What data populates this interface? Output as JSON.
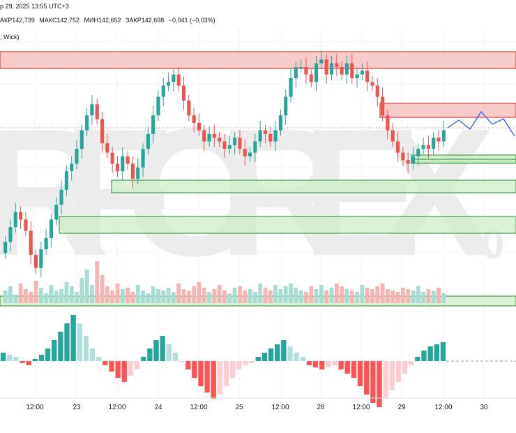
{
  "header": {
    "date_fragment": "р 29, 2025 13:55 UTC+3",
    "ohlc": [
      "АКР142,739",
      "МАКС142,752",
      "МИН142,652",
      "ЗАКР142,698",
      "−0,041 (−0,03%)"
    ],
    "volume_label": ", Wick)"
  },
  "watermark": {
    "text": "RFOREX",
    "suffix": "0"
  },
  "x_axis_labels": [
    "12:00",
    "23",
    "12:00",
    "24",
    "12:00",
    "25",
    "12:00",
    "28",
    "12:00",
    "29",
    "12:00",
    "30"
  ],
  "colors": {
    "up": "#26a69a",
    "down": "#ef5350",
    "resistance_fill": "#f6b9b9",
    "resistance_line": "#e53935",
    "support_fill": "#cdebc9",
    "support_line": "#43a047",
    "projection": "#2962ff",
    "hist_up_strong": "#26a69a",
    "hist_up_weak": "#b2dfdb",
    "hist_down_strong": "#ff5252",
    "hist_down_weak": "#ffcdd2"
  },
  "chart_data": [
    {
      "type": "candlestick",
      "title": "",
      "zones": [
        {
          "kind": "resistance",
          "top": 100,
          "bottom": 76
        },
        {
          "kind": "resistance",
          "top": 81,
          "bottom": 57
        },
        {
          "kind": "support",
          "top": 50,
          "bottom": 42
        },
        {
          "kind": "support",
          "top": 45,
          "bottom": 43
        },
        {
          "kind": "support",
          "top": 34,
          "bottom": 23
        },
        {
          "kind": "support",
          "top": 18,
          "bottom": 3
        },
        {
          "kind": "support",
          "top": 20,
          "bottom": 14
        }
      ],
      "projection_y": [
        60,
        66,
        60,
        68,
        60,
        66,
        55
      ],
      "candles_close": [
        2,
        10,
        18,
        14,
        8,
        -5,
        -12,
        -2,
        4,
        14,
        22,
        30,
        40,
        44,
        52,
        62,
        70,
        76,
        68,
        55,
        50,
        44,
        40,
        48,
        44,
        36,
        42,
        52,
        60,
        70,
        80,
        86,
        88,
        92,
        86,
        78,
        70,
        66,
        62,
        56,
        60,
        58,
        56,
        52,
        54,
        58,
        52,
        48,
        50,
        56,
        62,
        60,
        56,
        62,
        70,
        80,
        90,
        96,
        96,
        92,
        88,
        98,
        100,
        92,
        98,
        96,
        92,
        98,
        90,
        92,
        94,
        88,
        86,
        80,
        70,
        62,
        56,
        50,
        46,
        44,
        48,
        52,
        54,
        52,
        58,
        56,
        62
      ],
      "volume": [
        9,
        12,
        6,
        14,
        10,
        8,
        16,
        11,
        7,
        13,
        9,
        10,
        15,
        12,
        8,
        18,
        24,
        13,
        30,
        20,
        12,
        9,
        14,
        10,
        11,
        8,
        13,
        9,
        7,
        12,
        10,
        9,
        11,
        8,
        14,
        10,
        9,
        12,
        15,
        11,
        8,
        10,
        13,
        9,
        7,
        11,
        12,
        9,
        10,
        8,
        14,
        11,
        9,
        13,
        10,
        12,
        14,
        11,
        9,
        8,
        12,
        10,
        13,
        9,
        11,
        14,
        12,
        10,
        9,
        8,
        13,
        11,
        10,
        12,
        14,
        10,
        9,
        8,
        11,
        10,
        9,
        12,
        8,
        10,
        9,
        11,
        7
      ],
      "histogram": [
        4,
        3,
        2,
        -1,
        -2,
        1,
        3,
        6,
        10,
        14,
        18,
        22,
        18,
        12,
        6,
        2,
        -2,
        -5,
        -8,
        -10,
        -7,
        -4,
        2,
        6,
        10,
        12,
        8,
        4,
        0,
        -4,
        -8,
        -12,
        -15,
        -18,
        -16,
        -12,
        -8,
        -4,
        -2,
        -1,
        2,
        4,
        6,
        8,
        10,
        7,
        4,
        2,
        -2,
        -3,
        -4,
        -3,
        -2,
        -4,
        -6,
        -8,
        -12,
        -16,
        -20,
        -22,
        -18,
        -14,
        -10,
        -6,
        -2,
        2,
        5,
        7,
        8,
        9
      ]
    }
  ]
}
